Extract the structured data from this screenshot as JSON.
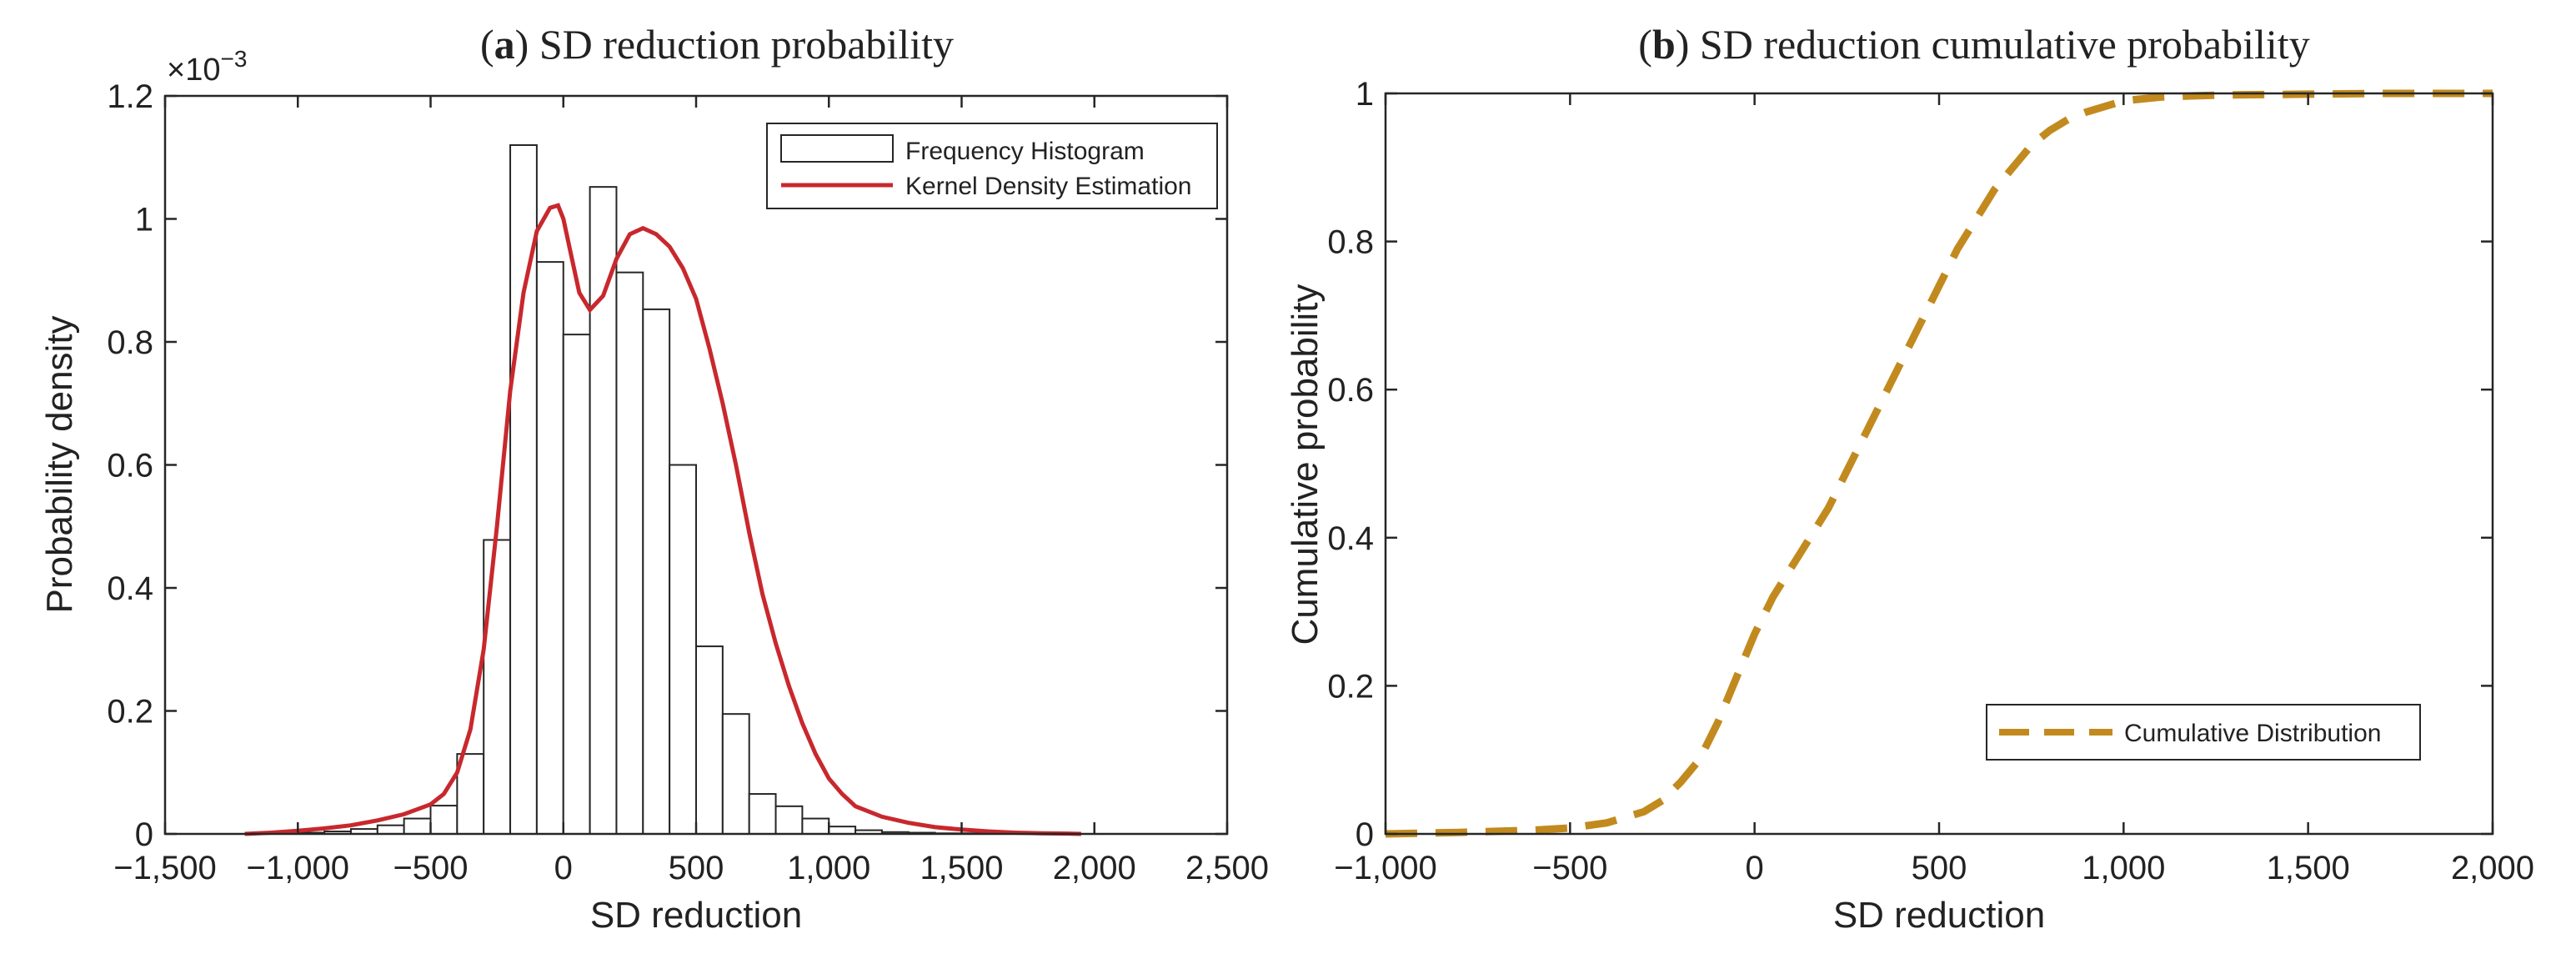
{
  "chart_data": [
    {
      "type": "bar",
      "panel_letter": "a",
      "title": "SD reduction probability",
      "xlabel": "SD reduction",
      "ylabel": "Probability density",
      "y_exponent_label": "×10",
      "y_exponent_power": "−3",
      "xlim": [
        -1500,
        2500
      ],
      "ylim": [
        0,
        1.2
      ],
      "xticks": [
        -1500,
        -1000,
        -500,
        0,
        500,
        1000,
        1500,
        2000,
        2500
      ],
      "xtick_labels": [
        "−1,500",
        "−1,000",
        "−500",
        "0",
        "500",
        "1,000",
        "1,500",
        "2,000",
        "2,500"
      ],
      "yticks": [
        0,
        0.2,
        0.4,
        0.6,
        0.8,
        1,
        1.2
      ],
      "ytick_labels": [
        "0",
        "0.2",
        "0.4",
        "0.6",
        "0.8",
        "1",
        "1.2"
      ],
      "legend_position": "top-right",
      "histogram": {
        "name": "Frequency Histogram",
        "bin_width": 100,
        "bin_starts": [
          -1000,
          -900,
          -800,
          -700,
          -600,
          -500,
          -400,
          -300,
          -200,
          -100,
          0,
          100,
          200,
          300,
          400,
          500,
          600,
          700,
          800,
          900,
          1000,
          1100,
          1200,
          1300,
          1400,
          1500
        ],
        "values": [
          0.002,
          0.004,
          0.008,
          0.014,
          0.025,
          0.046,
          0.13,
          0.478,
          1.12,
          0.93,
          0.812,
          1.052,
          0.913,
          0.853,
          0.6,
          0.305,
          0.195,
          0.065,
          0.045,
          0.025,
          0.012,
          0.006,
          0.003,
          0.002,
          0.001,
          0.001
        ]
      },
      "kde": {
        "name": "Kernel Density Estimation",
        "color": "#c8282d",
        "x": [
          -1200,
          -1100,
          -1000,
          -900,
          -800,
          -700,
          -600,
          -500,
          -450,
          -400,
          -350,
          -300,
          -250,
          -200,
          -150,
          -100,
          -50,
          -20,
          0,
          30,
          60,
          100,
          150,
          200,
          250,
          300,
          350,
          400,
          450,
          500,
          550,
          600,
          650,
          700,
          750,
          800,
          850,
          900,
          950,
          1000,
          1050,
          1100,
          1200,
          1300,
          1400,
          1500,
          1600,
          1700,
          1800,
          1900,
          1950
        ],
        "y": [
          0,
          0.002,
          0.005,
          0.009,
          0.014,
          0.022,
          0.032,
          0.048,
          0.065,
          0.1,
          0.17,
          0.3,
          0.5,
          0.72,
          0.88,
          0.98,
          1.018,
          1.022,
          1.0,
          0.94,
          0.88,
          0.852,
          0.875,
          0.935,
          0.975,
          0.985,
          0.975,
          0.955,
          0.92,
          0.87,
          0.79,
          0.7,
          0.6,
          0.49,
          0.39,
          0.31,
          0.24,
          0.18,
          0.13,
          0.09,
          0.065,
          0.045,
          0.028,
          0.018,
          0.011,
          0.007,
          0.004,
          0.002,
          0.001,
          0.0005,
          0
        ]
      }
    },
    {
      "type": "line",
      "panel_letter": "b",
      "title": "SD reduction cumulative probability",
      "xlabel": "SD reduction",
      "ylabel": "Cumulative probability",
      "xlim": [
        -1000,
        2000
      ],
      "ylim": [
        0,
        1
      ],
      "xticks": [
        -1000,
        -500,
        0,
        500,
        1000,
        1500,
        2000
      ],
      "xtick_labels": [
        "−1,000",
        "−500",
        "0",
        "500",
        "1,000",
        "1,500",
        "2,000"
      ],
      "yticks": [
        0,
        0.2,
        0.4,
        0.6,
        0.8,
        1
      ],
      "ytick_labels": [
        "0",
        "0.2",
        "0.4",
        "0.6",
        "0.8",
        "1"
      ],
      "legend_position": "bottom-right",
      "series": [
        {
          "name": "Cumulative Distribution",
          "color": "#c28a1e",
          "style": "dashed",
          "x": [
            -1000,
            -800,
            -600,
            -500,
            -400,
            -300,
            -250,
            -200,
            -150,
            -100,
            -50,
            0,
            50,
            100,
            150,
            200,
            250,
            300,
            350,
            400,
            450,
            500,
            550,
            600,
            650,
            700,
            750,
            800,
            850,
            900,
            1000,
            1100,
            1200,
            1300,
            1500,
            1700,
            2000
          ],
          "y": [
            0.0,
            0.002,
            0.005,
            0.008,
            0.015,
            0.03,
            0.045,
            0.07,
            0.1,
            0.15,
            0.21,
            0.27,
            0.32,
            0.36,
            0.4,
            0.44,
            0.49,
            0.54,
            0.59,
            0.64,
            0.69,
            0.74,
            0.79,
            0.83,
            0.87,
            0.9,
            0.93,
            0.95,
            0.965,
            0.975,
            0.99,
            0.995,
            0.997,
            0.998,
            0.999,
            1.0,
            1.0
          ]
        }
      ]
    }
  ]
}
